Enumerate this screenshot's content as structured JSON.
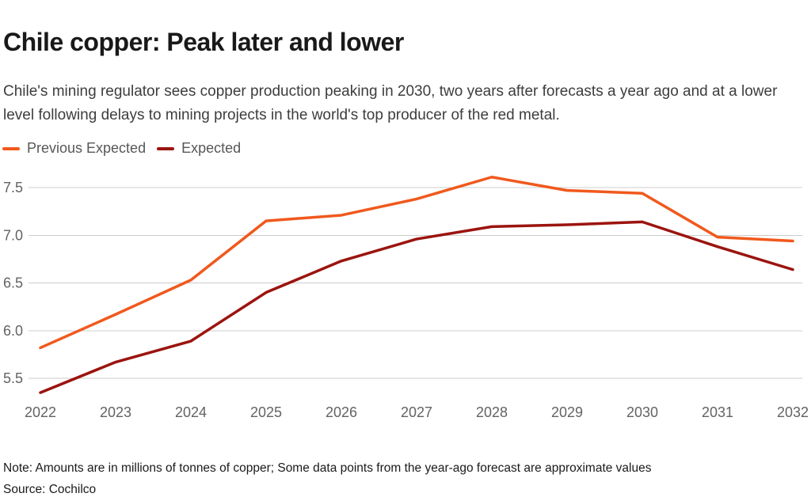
{
  "chart_data": {
    "type": "line",
    "title": "Chile copper: Peak later and lower",
    "subtitle": "Chile's mining regulator sees copper production peaking in 2030, two years after forecasts a year ago and at a lower level following delays to mining projects in the world's top producer of the red metal.",
    "x": [
      2022,
      2023,
      2024,
      2025,
      2026,
      2027,
      2028,
      2029,
      2030,
      2031,
      2032
    ],
    "series": [
      {
        "name": "Previous Expected",
        "color": "#f0591d",
        "values": [
          5.82,
          6.17,
          6.53,
          7.15,
          7.21,
          7.38,
          7.61,
          7.47,
          7.44,
          6.98,
          6.94
        ]
      },
      {
        "name": "Expected",
        "color": "#9b140f",
        "values": [
          5.35,
          5.67,
          5.89,
          6.4,
          6.73,
          6.96,
          7.09,
          7.11,
          7.14,
          6.88,
          6.64
        ]
      }
    ],
    "xlabel": "",
    "ylabel": "",
    "yticks": [
      7.5,
      7.0,
      6.5,
      6.0,
      5.5
    ],
    "ylim": [
      5.5,
      7.5
    ],
    "grid": "horizontal-only",
    "grid_color": "#cccccc",
    "tick_label_color": "#636363",
    "legend_position": "top-left",
    "note": "Note: Amounts are in millions of tonnes of copper; Some data points from the year-ago forecast are approximate values",
    "source": "Source: Cochilco"
  }
}
